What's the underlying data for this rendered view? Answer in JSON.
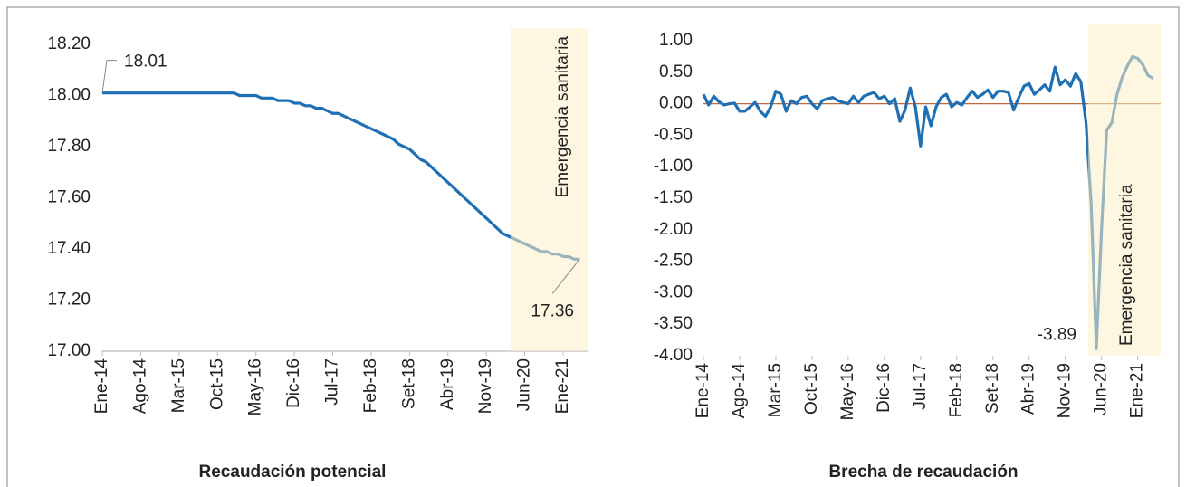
{
  "chart_data": [
    {
      "type": "line",
      "title": "Recaudación potencial",
      "annotation": "Emergencia sanitaria",
      "color": "#1f6fb4",
      "categories": [
        "Ene-14",
        null,
        null,
        null,
        null,
        null,
        null,
        "Ago-14",
        null,
        null,
        null,
        null,
        null,
        null,
        "Mar-15",
        null,
        null,
        null,
        null,
        null,
        null,
        "Oct-15",
        null,
        null,
        null,
        null,
        null,
        null,
        "May-16",
        null,
        null,
        null,
        null,
        null,
        null,
        "Dic-16",
        null,
        null,
        null,
        null,
        null,
        null,
        "Jul-17",
        null,
        null,
        null,
        null,
        null,
        null,
        "Feb-18",
        null,
        null,
        null,
        null,
        null,
        null,
        "Set-18",
        null,
        null,
        null,
        null,
        null,
        null,
        "Abr-19",
        null,
        null,
        null,
        null,
        null,
        null,
        "Nov-19",
        null,
        null,
        null,
        null,
        null,
        null,
        "Jun-20",
        null,
        null,
        null,
        null,
        null,
        null,
        "Ene-21",
        null,
        null,
        null
      ],
      "values": [
        18.01,
        18.01,
        18.01,
        18.01,
        18.01,
        18.01,
        18.01,
        18.01,
        18.01,
        18.01,
        18.01,
        18.01,
        18.01,
        18.01,
        18.01,
        18.01,
        18.01,
        18.01,
        18.01,
        18.01,
        18.01,
        18.01,
        18.01,
        18.01,
        18.01,
        18.0,
        18.0,
        18.0,
        18.0,
        17.99,
        17.99,
        17.99,
        17.98,
        17.98,
        17.98,
        17.97,
        17.97,
        17.96,
        17.96,
        17.95,
        17.95,
        17.94,
        17.93,
        17.93,
        17.92,
        17.91,
        17.9,
        17.89,
        17.88,
        17.87,
        17.86,
        17.85,
        17.84,
        17.83,
        17.81,
        17.8,
        17.79,
        17.77,
        17.75,
        17.74,
        17.72,
        17.7,
        17.68,
        17.66,
        17.64,
        17.62,
        17.6,
        17.58,
        17.56,
        17.54,
        17.52,
        17.5,
        17.48,
        17.46,
        17.45,
        17.44,
        17.43,
        17.42,
        17.41,
        17.4,
        17.39,
        17.39,
        17.38,
        17.38,
        17.37,
        17.37,
        17.36,
        17.36
      ],
      "ylim": [
        17.0,
        18.2
      ],
      "yticks": [
        {
          "value": 17.0,
          "label": "17.00"
        },
        {
          "value": 17.2,
          "label": "17.20"
        },
        {
          "value": 17.4,
          "label": "17.40"
        },
        {
          "value": 17.6,
          "label": "17.60"
        },
        {
          "value": 17.8,
          "label": "17.80"
        },
        {
          "value": 18.0,
          "label": "18.00"
        },
        {
          "value": 18.2,
          "label": "18.20"
        }
      ]
    },
    {
      "type": "line",
      "title": "Brecha de recaudación",
      "annotation": "Emergencia sanitaria",
      "color": "#1f6fb4",
      "zero_line_color": "#c0683a",
      "categories": [
        "Ene-14",
        null,
        null,
        null,
        null,
        null,
        null,
        "Ago-14",
        null,
        null,
        null,
        null,
        null,
        null,
        "Mar-15",
        null,
        null,
        null,
        null,
        null,
        null,
        "Oct-15",
        null,
        null,
        null,
        null,
        null,
        null,
        "May-16",
        null,
        null,
        null,
        null,
        null,
        null,
        "Dic-16",
        null,
        null,
        null,
        null,
        null,
        null,
        "Jul-17",
        null,
        null,
        null,
        null,
        null,
        null,
        "Feb-18",
        null,
        null,
        null,
        null,
        null,
        null,
        "Set-18",
        null,
        null,
        null,
        null,
        null,
        null,
        "Abr-19",
        null,
        null,
        null,
        null,
        null,
        null,
        "Nov-19",
        null,
        null,
        null,
        null,
        null,
        null,
        "Jun-20",
        null,
        null,
        null,
        null,
        null,
        null,
        "Ene-21",
        null,
        null,
        null
      ],
      "values": [
        0.15,
        -0.02,
        0.12,
        0.03,
        -0.02,
        0.0,
        0.01,
        -0.12,
        -0.12,
        -0.05,
        0.02,
        -0.12,
        -0.2,
        -0.05,
        0.2,
        0.15,
        -0.12,
        0.05,
        0.0,
        0.1,
        0.12,
        0.0,
        -0.08,
        0.05,
        0.08,
        0.1,
        0.05,
        0.02,
        0.0,
        0.12,
        0.02,
        0.12,
        0.15,
        0.18,
        0.08,
        0.12,
        0.0,
        0.08,
        -0.28,
        -0.1,
        0.25,
        -0.05,
        -0.67,
        -0.05,
        -0.35,
        -0.05,
        0.1,
        0.15,
        -0.05,
        0.02,
        -0.02,
        0.1,
        0.2,
        0.1,
        0.15,
        0.22,
        0.1,
        0.2,
        0.2,
        0.18,
        -0.1,
        0.1,
        0.28,
        0.32,
        0.15,
        0.22,
        0.3,
        0.2,
        0.58,
        0.3,
        0.38,
        0.28,
        0.48,
        0.35,
        -0.3,
        -1.6,
        -3.89,
        -2.0,
        -0.42,
        -0.3,
        0.15,
        0.42,
        0.6,
        0.75,
        0.72,
        0.62,
        0.45,
        0.4
      ],
      "ylim": [
        -4.0,
        1.0
      ],
      "yticks": [
        {
          "value": -4.0,
          "label": "-4.00"
        },
        {
          "value": -3.5,
          "label": "-3.50"
        },
        {
          "value": -3.0,
          "label": "-3.00"
        },
        {
          "value": -2.5,
          "label": "-2.50"
        },
        {
          "value": -2.0,
          "label": "-2.00"
        },
        {
          "value": -1.5,
          "label": "-1.50"
        },
        {
          "value": -1.0,
          "label": "-1.00"
        },
        {
          "value": -0.5,
          "label": "-0.50"
        },
        {
          "value": 0.0,
          "label": "0.00"
        },
        {
          "value": 0.5,
          "label": "0.50"
        },
        {
          "value": 1.0,
          "label": "1.00"
        }
      ]
    }
  ]
}
